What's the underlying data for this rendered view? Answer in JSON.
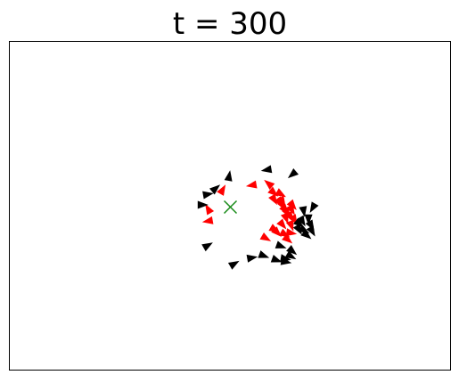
{
  "chart_data": {
    "type": "scatter",
    "title": "t = 300",
    "xlabel": "",
    "ylabel": "",
    "axes_ticks": false,
    "grid": false,
    "xlim": [
      0,
      100
    ],
    "ylim": [
      0,
      75
    ],
    "target": {
      "name": "",
      "marker": "x",
      "color": "#1a8c1a",
      "point": [
        50.1,
        37.2
      ]
    },
    "series": [
      {
        "color": "#ff0000",
        "marker": "triangle",
        "points": [
          [
            45.1,
            36.7,
            120
          ],
          [
            45.1,
            34.0,
            190
          ],
          [
            48.3,
            41.1,
            60
          ],
          [
            55.0,
            42.2,
            190
          ],
          [
            58.8,
            42.5,
            140
          ],
          [
            59.9,
            40.5,
            320
          ],
          [
            61.5,
            40.2,
            330
          ],
          [
            61.3,
            38.3,
            305
          ],
          [
            62.0,
            37.5,
            300
          ],
          [
            62.5,
            36.6,
            310
          ],
          [
            63.0,
            35.9,
            300
          ],
          [
            64.0,
            36.6,
            300
          ],
          [
            62.7,
            34.7,
            290
          ],
          [
            63.7,
            35.0,
            300
          ],
          [
            64.6,
            34.3,
            300
          ],
          [
            63.9,
            33.0,
            290
          ],
          [
            61.9,
            33.2,
            310
          ],
          [
            60.1,
            32.1,
            330
          ],
          [
            62.4,
            31.0,
            330
          ],
          [
            63.8,
            31.3,
            350
          ],
          [
            60.7,
            31.4,
            315
          ],
          [
            58.1,
            30.1,
            330
          ],
          [
            63.1,
            29.8,
            320
          ],
          [
            61.9,
            38.5,
            300
          ],
          [
            60.0,
            38.9,
            300
          ],
          [
            64.2,
            37.6,
            310
          ]
        ]
      },
      {
        "color": "#000000",
        "marker": "triangle",
        "points": [
          [
            49.8,
            44.2,
            80
          ],
          [
            46.7,
            41.4,
            40
          ],
          [
            44.9,
            40.1,
            10
          ],
          [
            43.7,
            37.7,
            0
          ],
          [
            58.4,
            45.7,
            190
          ],
          [
            64.2,
            44.7,
            220
          ],
          [
            66.7,
            36.3,
            280
          ],
          [
            68.8,
            37.1,
            240
          ],
          [
            66.4,
            34.0,
            300
          ],
          [
            67.8,
            34.5,
            270
          ],
          [
            68.4,
            33.0,
            300
          ],
          [
            65.7,
            33.4,
            320
          ],
          [
            65.6,
            32.1,
            300
          ],
          [
            66.8,
            31.9,
            330
          ],
          [
            68.6,
            31.7,
            300
          ],
          [
            67.4,
            30.8,
            320
          ],
          [
            61.5,
            28.3,
            340
          ],
          [
            64.1,
            27.2,
            320
          ],
          [
            62.5,
            25.4,
            350
          ],
          [
            63.8,
            26.0,
            330
          ],
          [
            62.6,
            24.7,
            350
          ],
          [
            60.5,
            25.1,
            340
          ],
          [
            57.6,
            26.1,
            340
          ],
          [
            54.9,
            25.6,
            10
          ],
          [
            50.9,
            24.2,
            30
          ],
          [
            44.9,
            28.4,
            30
          ]
        ]
      }
    ]
  }
}
